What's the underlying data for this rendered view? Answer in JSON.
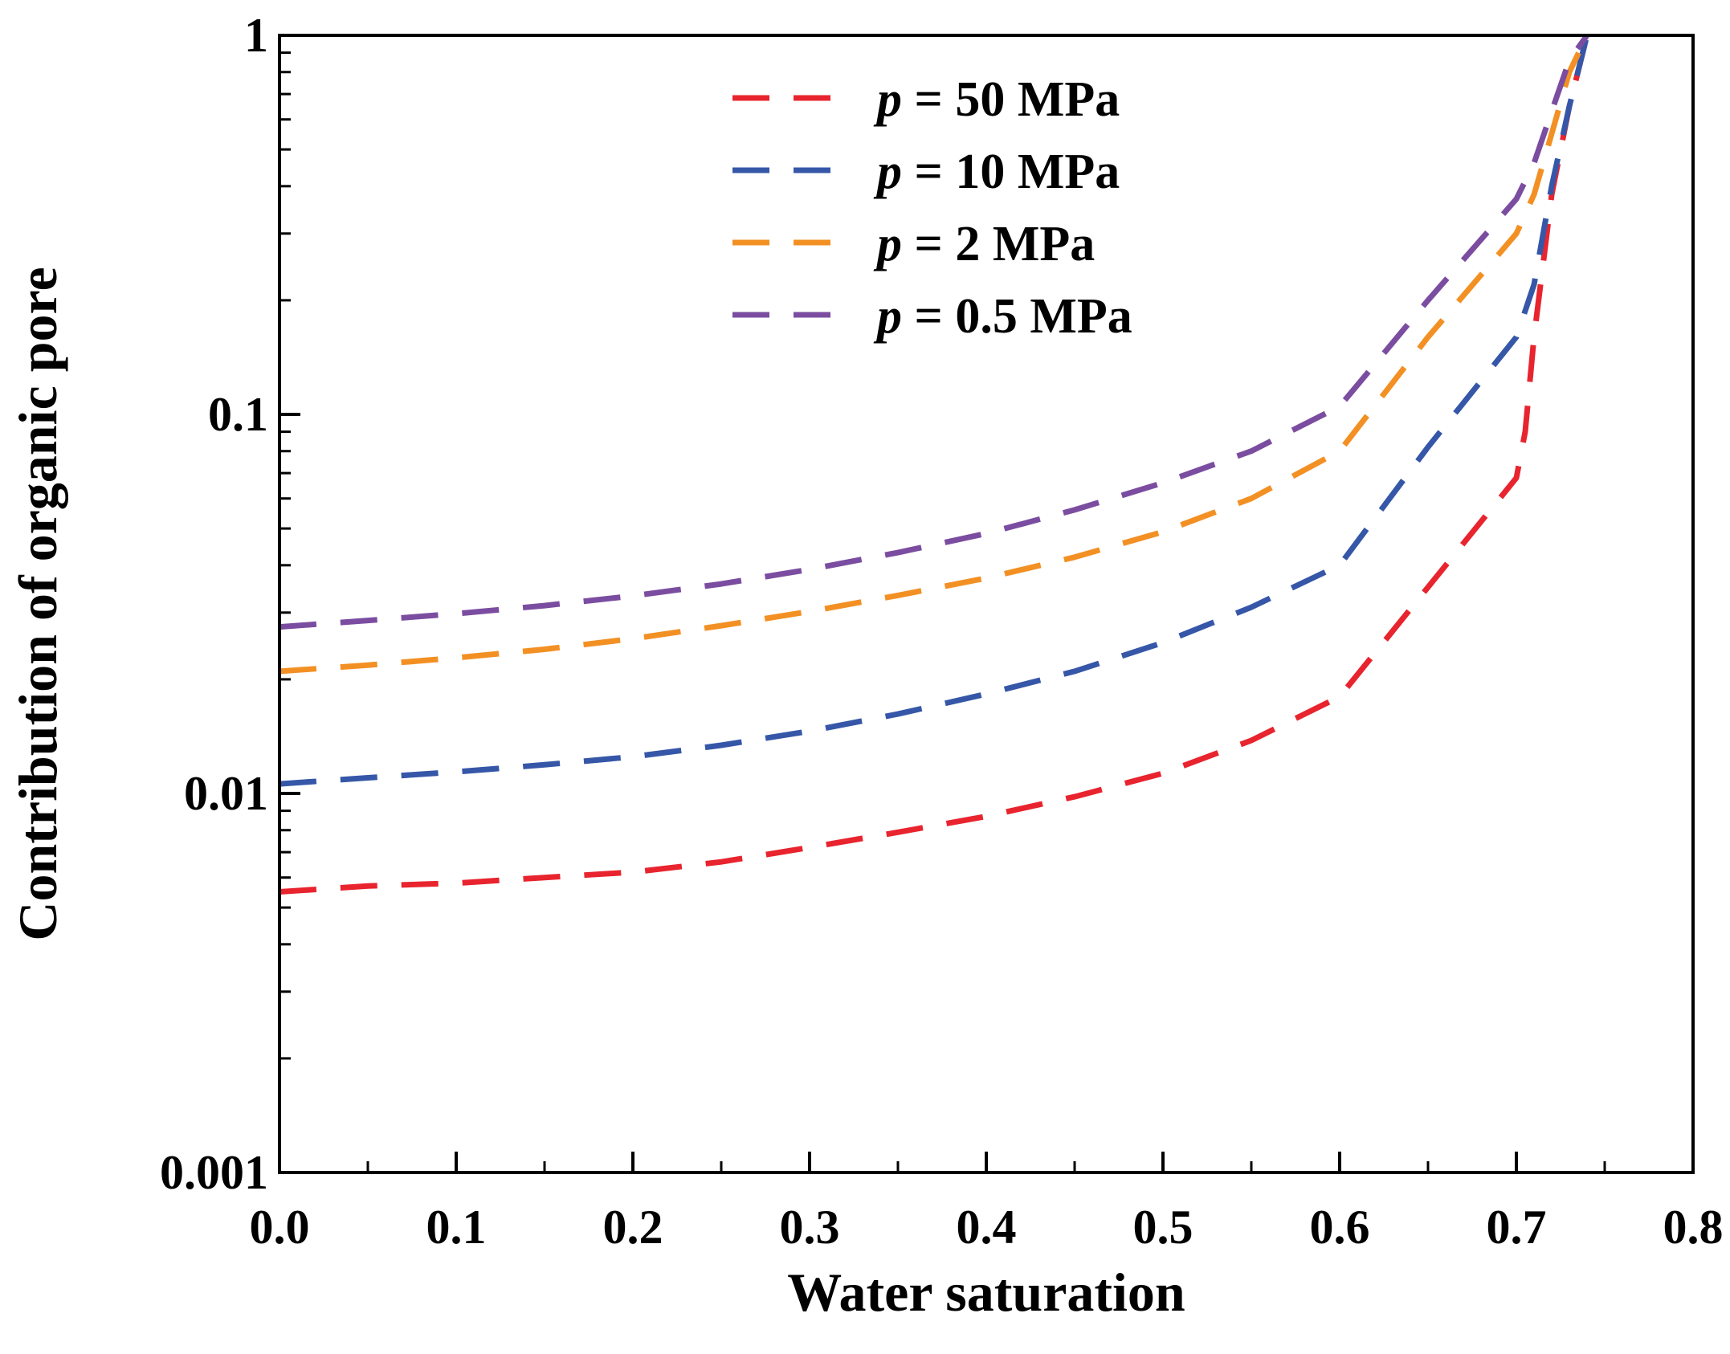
{
  "chart_data": {
    "type": "line",
    "title": "",
    "xlabel": "Water saturation",
    "ylabel": "Contribution of organic pore",
    "xlim": [
      0.0,
      0.8
    ],
    "ylim": [
      0.001,
      1
    ],
    "yscale": "log",
    "grid": false,
    "legend_position": "top-center",
    "x_ticks": [
      0.0,
      0.1,
      0.2,
      0.3,
      0.4,
      0.5,
      0.6,
      0.7,
      0.8
    ],
    "x_tick_labels": [
      "0.0",
      "0.1",
      "0.2",
      "0.3",
      "0.4",
      "0.5",
      "0.6",
      "0.7",
      "0.8"
    ],
    "y_ticks": [
      0.001,
      0.01,
      0.1,
      1
    ],
    "y_tick_labels": [
      "0.001",
      "0.01",
      "0.1",
      "1"
    ],
    "series": [
      {
        "name": "p = 50  MPa",
        "legend_prefix": "p",
        "legend_rest": " = 50  MPa",
        "color": "#e8242e",
        "x": [
          0.0,
          0.05,
          0.1,
          0.15,
          0.2,
          0.25,
          0.3,
          0.35,
          0.4,
          0.45,
          0.5,
          0.55,
          0.6,
          0.65,
          0.7,
          0.705,
          0.71,
          0.72,
          0.73,
          0.74
        ],
        "y": [
          0.0055,
          0.0057,
          0.0058,
          0.006,
          0.0062,
          0.0066,
          0.0072,
          0.0079,
          0.0087,
          0.0098,
          0.0113,
          0.0138,
          0.018,
          0.035,
          0.068,
          0.09,
          0.16,
          0.38,
          0.65,
          1.0
        ]
      },
      {
        "name": "p = 10  MPa",
        "legend_prefix": "p",
        "legend_rest": " = 10  MPa",
        "color": "#3657a8",
        "x": [
          0.0,
          0.05,
          0.1,
          0.15,
          0.2,
          0.25,
          0.3,
          0.35,
          0.4,
          0.45,
          0.5,
          0.55,
          0.6,
          0.65,
          0.7,
          0.71,
          0.72,
          0.73,
          0.74
        ],
        "y": [
          0.0106,
          0.011,
          0.0114,
          0.0119,
          0.0125,
          0.0134,
          0.0146,
          0.0162,
          0.0183,
          0.021,
          0.025,
          0.031,
          0.04,
          0.082,
          0.16,
          0.22,
          0.4,
          0.65,
          1.0
        ]
      },
      {
        "name": "p =  2   MPa",
        "legend_prefix": "p",
        "legend_rest": " =  2   MPa",
        "color": "#f39024",
        "x": [
          0.0,
          0.05,
          0.1,
          0.15,
          0.2,
          0.25,
          0.3,
          0.35,
          0.4,
          0.45,
          0.5,
          0.55,
          0.6,
          0.65,
          0.7,
          0.71,
          0.72,
          0.73,
          0.74
        ],
        "y": [
          0.021,
          0.0218,
          0.0228,
          0.024,
          0.0256,
          0.0277,
          0.0302,
          0.0333,
          0.037,
          0.042,
          0.049,
          0.06,
          0.08,
          0.16,
          0.3,
          0.38,
          0.55,
          0.8,
          1.0
        ]
      },
      {
        "name": "p = 0.5 MPa",
        "legend_prefix": "p",
        "legend_rest": " = 0.5 MPa",
        "color": "#7b4da0",
        "x": [
          0.0,
          0.05,
          0.1,
          0.15,
          0.2,
          0.25,
          0.3,
          0.35,
          0.4,
          0.45,
          0.5,
          0.55,
          0.6,
          0.65,
          0.7,
          0.71,
          0.72,
          0.73,
          0.74
        ],
        "y": [
          0.0275,
          0.0286,
          0.0298,
          0.0313,
          0.0332,
          0.0357,
          0.039,
          0.0432,
          0.0485,
          0.056,
          0.066,
          0.08,
          0.105,
          0.2,
          0.37,
          0.46,
          0.63,
          0.86,
          1.0
        ]
      }
    ]
  }
}
